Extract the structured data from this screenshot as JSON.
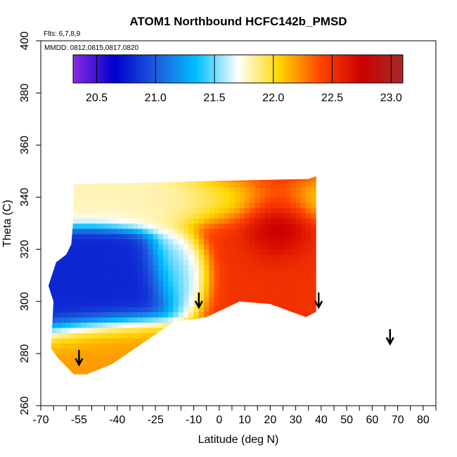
{
  "chart_data": {
    "type": "heatmap",
    "title": "ATOM1 Northbound HCFC142b_PMSD",
    "annotations": [
      "Flts: 6,7,8,9",
      "MMDD: 0812,0815,0817,0820"
    ],
    "xlabel": "Latitude (deg N)",
    "ylabel": "Theta (C)",
    "xlim": [
      -70,
      85
    ],
    "ylim": [
      260,
      400
    ],
    "x_ticks": [
      "-70",
      "-55",
      "-40",
      "-25",
      "-10",
      "0",
      "10",
      "20",
      "30",
      "40",
      "50",
      "60",
      "70",
      "80"
    ],
    "y_ticks": [
      "260",
      "280",
      "300",
      "320",
      "340",
      "360",
      "380",
      "400"
    ],
    "colorbar": {
      "range": [
        20.3,
        23.1
      ],
      "tick_labels": [
        "20.5",
        "21.0",
        "21.5",
        "22.0",
        "22.5",
        "23.0"
      ],
      "tick_values": [
        20.5,
        21.0,
        21.5,
        22.0,
        22.5,
        23.0
      ],
      "colors": [
        "#8a2be2",
        "#0000cd",
        "#1e5adc",
        "#00bfff",
        "#ffffff",
        "#ffd700",
        "#ff4500",
        "#cd0000",
        "#a52a2a"
      ]
    },
    "field_regions": [
      {
        "lat": [
          -57,
          35
        ],
        "theta": [
          330,
          346
        ],
        "value": 21.8
      },
      {
        "lat": [
          -66,
          -20
        ],
        "theta": [
          292,
          322
        ],
        "value": 20.8
      },
      {
        "lat": [
          -25,
          -5
        ],
        "theta": [
          300,
          325
        ],
        "value": 21.5
      },
      {
        "lat": [
          -10,
          38
        ],
        "theta": [
          292,
          348
        ],
        "value": 22.5
      },
      {
        "lat": [
          10,
          32
        ],
        "theta": [
          318,
          342
        ],
        "value": 23.0
      },
      {
        "lat": [
          -58,
          -15
        ],
        "theta": [
          272,
          292
        ],
        "value": 22.2
      }
    ],
    "profile_arrows": [
      {
        "lat": -55,
        "theta": 276
      },
      {
        "lat": -8,
        "theta": 298
      },
      {
        "lat": 39,
        "theta": 298
      },
      {
        "lat": 67,
        "theta": 284
      }
    ],
    "grid": false
  }
}
